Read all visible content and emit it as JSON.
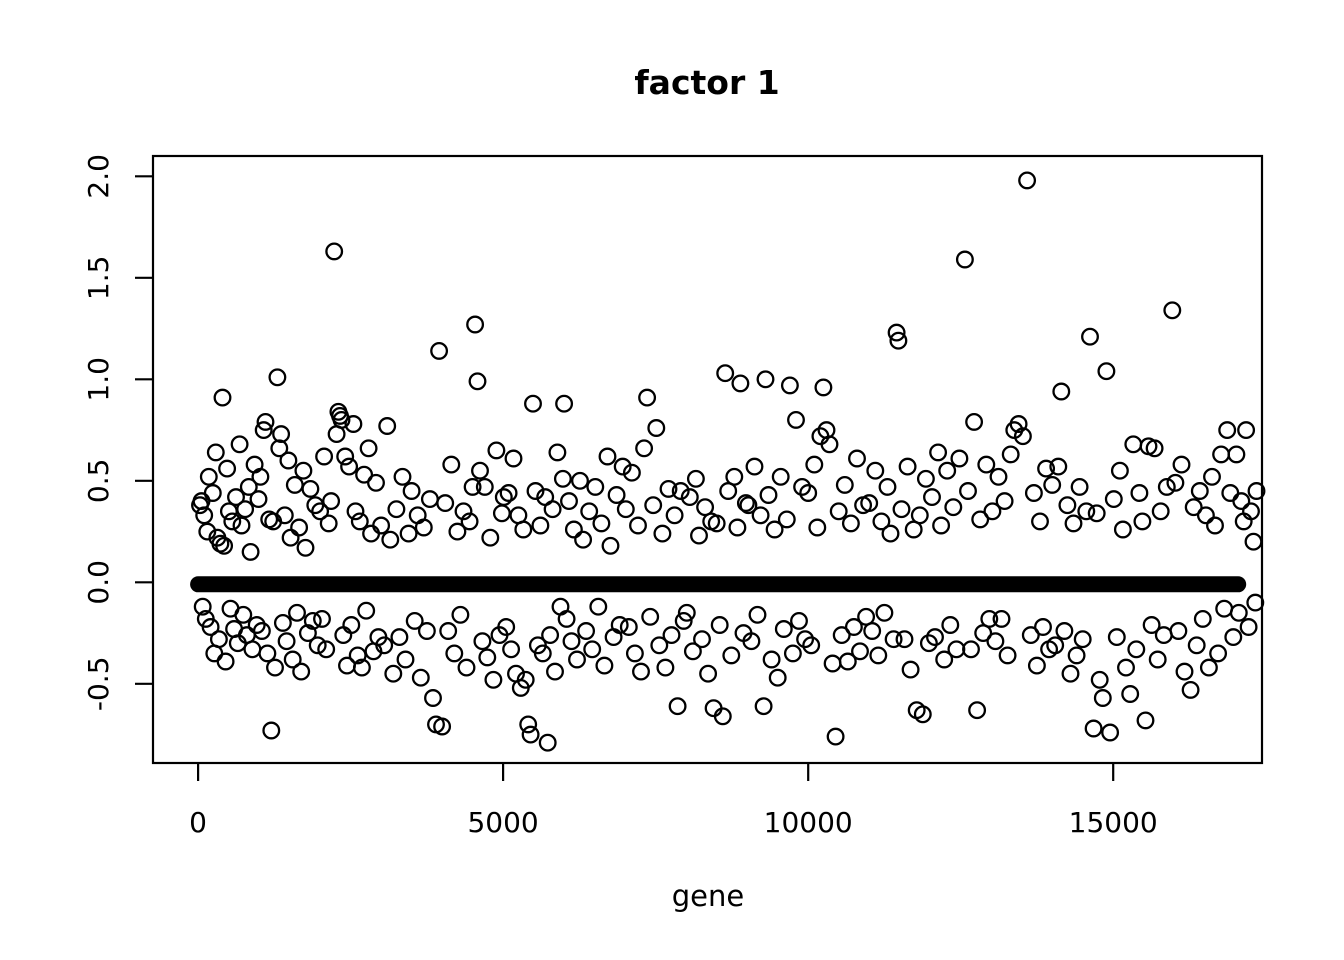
{
  "title": "factor 1",
  "chart_data": {
    "type": "scatter",
    "title": "factor 1",
    "xlabel": "gene",
    "ylabel": "",
    "xlim": [
      -740,
      17440
    ],
    "ylim": [
      -0.89,
      2.1
    ],
    "x_ticks": [
      {
        "v": 0,
        "label": "0"
      },
      {
        "v": 5000,
        "label": "5000"
      },
      {
        "v": 10000,
        "label": "10000"
      },
      {
        "v": 15000,
        "label": "15000"
      }
    ],
    "y_ticks": [
      {
        "v": -0.5,
        "label": "-0.5"
      },
      {
        "v": 0.0,
        "label": "0.0"
      },
      {
        "v": 0.5,
        "label": "0.5"
      },
      {
        "v": 1.0,
        "label": "1.0"
      },
      {
        "v": 1.5,
        "label": "1.5"
      },
      {
        "v": 2.0,
        "label": "2.0"
      }
    ],
    "grid": false,
    "legend": null,
    "marker": "open-circle",
    "colors": {
      "points": "#000000",
      "axis": "#000000",
      "background": "#ffffff"
    },
    "zero_band": {
      "y": 0,
      "x_start": 0,
      "x_end": 17050,
      "description": "dense run of points at y = 0 across nearly all genes, rendered as a thick solid horizontal bar"
    },
    "estimation_note": "individual scatter values read off axes and estimated; notable outliers: (13590,1.98), (2230,1.63), (12570,1.59), (15970,1.34), (4540,1.27), (11450,1.23), (14620,1.21), (3950,1.14), lows near -0.7 to -0.79",
    "points": [
      [
        30,
        0.38
      ],
      [
        55,
        0.4
      ],
      [
        75,
        -0.12
      ],
      [
        100,
        0.33
      ],
      [
        125,
        -0.18
      ],
      [
        150,
        0.25
      ],
      [
        175,
        0.52
      ],
      [
        205,
        -0.22
      ],
      [
        240,
        0.44
      ],
      [
        265,
        -0.35
      ],
      [
        290,
        0.64
      ],
      [
        315,
        0.22
      ],
      [
        340,
        -0.28
      ],
      [
        365,
        0.19
      ],
      [
        400,
        0.91
      ],
      [
        425,
        0.18
      ],
      [
        450,
        -0.39
      ],
      [
        475,
        0.56
      ],
      [
        505,
        0.35
      ],
      [
        530,
        -0.13
      ],
      [
        560,
        0.3
      ],
      [
        590,
        -0.23
      ],
      [
        620,
        0.42
      ],
      [
        650,
        -0.3
      ],
      [
        680,
        0.68
      ],
      [
        710,
        0.28
      ],
      [
        740,
        -0.16
      ],
      [
        770,
        0.36
      ],
      [
        800,
        -0.26
      ],
      [
        830,
        0.47
      ],
      [
        860,
        0.15
      ],
      [
        890,
        -0.33
      ],
      [
        925,
        0.58
      ],
      [
        960,
        -0.21
      ],
      [
        990,
        0.41
      ],
      [
        1020,
        0.52
      ],
      [
        1045,
        -0.24
      ],
      [
        1075,
        0.75
      ],
      [
        1105,
        0.79
      ],
      [
        1135,
        -0.35
      ],
      [
        1165,
        0.31
      ],
      [
        1200,
        -0.73
      ],
      [
        1230,
        0.3
      ],
      [
        1260,
        -0.42
      ],
      [
        1300,
        1.01
      ],
      [
        1330,
        0.66
      ],
      [
        1360,
        0.73
      ],
      [
        1390,
        -0.2
      ],
      [
        1420,
        0.33
      ],
      [
        1450,
        -0.29
      ],
      [
        1480,
        0.6
      ],
      [
        1515,
        0.22
      ],
      [
        1550,
        -0.38
      ],
      [
        1585,
        0.48
      ],
      [
        1620,
        -0.15
      ],
      [
        1655,
        0.27
      ],
      [
        1690,
        -0.44
      ],
      [
        1725,
        0.55
      ],
      [
        1760,
        0.17
      ],
      [
        1800,
        -0.25
      ],
      [
        1840,
        0.46
      ],
      [
        1880,
        -0.19
      ],
      [
        1920,
        0.38
      ],
      [
        1960,
        -0.31
      ],
      [
        2000,
        0.35
      ],
      [
        2030,
        -0.18
      ],
      [
        2065,
        0.62
      ],
      [
        2100,
        -0.33
      ],
      [
        2140,
        0.29
      ],
      [
        2180,
        0.4
      ],
      [
        2230,
        1.63
      ],
      [
        2270,
        0.73
      ],
      [
        2300,
        0.84
      ],
      [
        2325,
        0.82
      ],
      [
        2350,
        0.8
      ],
      [
        2380,
        -0.26
      ],
      [
        2410,
        0.62
      ],
      [
        2440,
        -0.41
      ],
      [
        2475,
        0.57
      ],
      [
        2510,
        -0.21
      ],
      [
        2545,
        0.78
      ],
      [
        2580,
        0.35
      ],
      [
        2615,
        -0.36
      ],
      [
        2650,
        0.3
      ],
      [
        2685,
        -0.42
      ],
      [
        2720,
        0.53
      ],
      [
        2755,
        -0.14
      ],
      [
        2795,
        0.66
      ],
      [
        2835,
        0.24
      ],
      [
        2875,
        -0.34
      ],
      [
        2915,
        0.49
      ],
      [
        2955,
        -0.27
      ],
      [
        3000,
        0.28
      ],
      [
        3050,
        -0.31
      ],
      [
        3100,
        0.77
      ],
      [
        3150,
        0.21
      ],
      [
        3200,
        -0.45
      ],
      [
        3250,
        0.36
      ],
      [
        3300,
        -0.27
      ],
      [
        3350,
        0.52
      ],
      [
        3400,
        -0.38
      ],
      [
        3450,
        0.24
      ],
      [
        3500,
        0.45
      ],
      [
        3550,
        -0.19
      ],
      [
        3600,
        0.33
      ],
      [
        3650,
        -0.47
      ],
      [
        3700,
        0.27
      ],
      [
        3750,
        -0.24
      ],
      [
        3800,
        0.41
      ],
      [
        3850,
        -0.57
      ],
      [
        3900,
        -0.7
      ],
      [
        3950,
        1.14
      ],
      [
        4000,
        -0.71
      ],
      [
        4050,
        0.39
      ],
      [
        4100,
        -0.24
      ],
      [
        4150,
        0.58
      ],
      [
        4200,
        -0.35
      ],
      [
        4250,
        0.25
      ],
      [
        4300,
        -0.16
      ],
      [
        4350,
        0.35
      ],
      [
        4400,
        -0.42
      ],
      [
        4450,
        0.3
      ],
      [
        4500,
        0.47
      ],
      [
        4540,
        1.27
      ],
      [
        4580,
        0.99
      ],
      [
        4620,
        0.55
      ],
      [
        4660,
        -0.29
      ],
      [
        4700,
        0.47
      ],
      [
        4740,
        -0.37
      ],
      [
        4790,
        0.22
      ],
      [
        4840,
        -0.48
      ],
      [
        4890,
        0.65
      ],
      [
        4940,
        -0.26
      ],
      [
        4980,
        0.34
      ],
      [
        5010,
        0.42
      ],
      [
        5050,
        -0.22
      ],
      [
        5090,
        0.44
      ],
      [
        5130,
        -0.33
      ],
      [
        5170,
        0.61
      ],
      [
        5210,
        -0.45
      ],
      [
        5250,
        0.33
      ],
      [
        5290,
        -0.52
      ],
      [
        5330,
        0.26
      ],
      [
        5370,
        -0.48
      ],
      [
        5410,
        -0.7
      ],
      [
        5450,
        -0.75
      ],
      [
        5490,
        0.88
      ],
      [
        5530,
        0.45
      ],
      [
        5570,
        -0.31
      ],
      [
        5610,
        0.28
      ],
      [
        5650,
        -0.35
      ],
      [
        5690,
        0.42
      ],
      [
        5730,
        -0.79
      ],
      [
        5770,
        -0.26
      ],
      [
        5810,
        0.36
      ],
      [
        5850,
        -0.44
      ],
      [
        5890,
        0.64
      ],
      [
        5940,
        -0.12
      ],
      [
        5980,
        0.51
      ],
      [
        6000,
        0.88
      ],
      [
        6040,
        -0.18
      ],
      [
        6080,
        0.4
      ],
      [
        6120,
        -0.29
      ],
      [
        6160,
        0.26
      ],
      [
        6210,
        -0.38
      ],
      [
        6260,
        0.5
      ],
      [
        6310,
        0.21
      ],
      [
        6360,
        -0.24
      ],
      [
        6410,
        0.35
      ],
      [
        6460,
        -0.33
      ],
      [
        6510,
        0.47
      ],
      [
        6560,
        -0.12
      ],
      [
        6610,
        0.29
      ],
      [
        6660,
        -0.41
      ],
      [
        6710,
        0.62
      ],
      [
        6760,
        0.18
      ],
      [
        6810,
        -0.27
      ],
      [
        6860,
        0.43
      ],
      [
        6910,
        -0.21
      ],
      [
        6960,
        0.57
      ],
      [
        7010,
        0.36
      ],
      [
        7060,
        -0.22
      ],
      [
        7110,
        0.54
      ],
      [
        7160,
        -0.35
      ],
      [
        7210,
        0.28
      ],
      [
        7260,
        -0.44
      ],
      [
        7310,
        0.66
      ],
      [
        7360,
        0.91
      ],
      [
        7410,
        -0.17
      ],
      [
        7460,
        0.38
      ],
      [
        7510,
        0.76
      ],
      [
        7560,
        -0.31
      ],
      [
        7610,
        0.24
      ],
      [
        7660,
        -0.42
      ],
      [
        7710,
        0.46
      ],
      [
        7760,
        -0.26
      ],
      [
        7810,
        0.33
      ],
      [
        7860,
        -0.61
      ],
      [
        7910,
        0.45
      ],
      [
        7960,
        -0.19
      ],
      [
        8010,
        -0.15
      ],
      [
        8060,
        0.42
      ],
      [
        8110,
        -0.34
      ],
      [
        8160,
        0.51
      ],
      [
        8210,
        0.23
      ],
      [
        8260,
        -0.28
      ],
      [
        8310,
        0.37
      ],
      [
        8360,
        -0.45
      ],
      [
        8410,
        0.3
      ],
      [
        8450,
        -0.62
      ],
      [
        8500,
        0.29
      ],
      [
        8550,
        -0.21
      ],
      [
        8600,
        -0.66
      ],
      [
        8640,
        1.03
      ],
      [
        8690,
        0.45
      ],
      [
        8740,
        -0.36
      ],
      [
        8790,
        0.52
      ],
      [
        8840,
        0.27
      ],
      [
        8890,
        0.98
      ],
      [
        8940,
        -0.25
      ],
      [
        8980,
        0.39
      ],
      [
        9020,
        0.38
      ],
      [
        9070,
        -0.29
      ],
      [
        9120,
        0.57
      ],
      [
        9170,
        -0.16
      ],
      [
        9220,
        0.33
      ],
      [
        9270,
        -0.61
      ],
      [
        9300,
        1.0
      ],
      [
        9350,
        0.43
      ],
      [
        9400,
        -0.38
      ],
      [
        9450,
        0.26
      ],
      [
        9500,
        -0.47
      ],
      [
        9550,
        0.52
      ],
      [
        9600,
        -0.23
      ],
      [
        9650,
        0.31
      ],
      [
        9700,
        0.97
      ],
      [
        9750,
        -0.35
      ],
      [
        9800,
        0.8
      ],
      [
        9850,
        -0.19
      ],
      [
        9900,
        0.47
      ],
      [
        9950,
        -0.28
      ],
      [
        10000,
        0.44
      ],
      [
        10050,
        -0.31
      ],
      [
        10100,
        0.58
      ],
      [
        10150,
        0.27
      ],
      [
        10200,
        0.72
      ],
      [
        10250,
        0.96
      ],
      [
        10300,
        0.75
      ],
      [
        10350,
        0.68
      ],
      [
        10400,
        -0.4
      ],
      [
        10450,
        -0.76
      ],
      [
        10500,
        0.35
      ],
      [
        10550,
        -0.26
      ],
      [
        10600,
        0.48
      ],
      [
        10650,
        -0.39
      ],
      [
        10700,
        0.29
      ],
      [
        10750,
        -0.22
      ],
      [
        10800,
        0.61
      ],
      [
        10850,
        -0.34
      ],
      [
        10900,
        0.38
      ],
      [
        10950,
        -0.17
      ],
      [
        11000,
        0.39
      ],
      [
        11050,
        -0.24
      ],
      [
        11100,
        0.55
      ],
      [
        11150,
        -0.36
      ],
      [
        11200,
        0.3
      ],
      [
        11250,
        -0.15
      ],
      [
        11300,
        0.47
      ],
      [
        11350,
        0.24
      ],
      [
        11400,
        -0.28
      ],
      [
        11450,
        1.23
      ],
      [
        11480,
        1.19
      ],
      [
        11530,
        0.36
      ],
      [
        11580,
        -0.28
      ],
      [
        11630,
        0.57
      ],
      [
        11680,
        -0.43
      ],
      [
        11730,
        0.26
      ],
      [
        11780,
        -0.63
      ],
      [
        11830,
        0.33
      ],
      [
        11880,
        -0.65
      ],
      [
        11930,
        0.51
      ],
      [
        11980,
        -0.3
      ],
      [
        12030,
        0.42
      ],
      [
        12080,
        -0.27
      ],
      [
        12130,
        0.64
      ],
      [
        12180,
        0.28
      ],
      [
        12230,
        -0.38
      ],
      [
        12280,
        0.55
      ],
      [
        12330,
        -0.21
      ],
      [
        12380,
        0.37
      ],
      [
        12430,
        -0.33
      ],
      [
        12480,
        0.61
      ],
      [
        12570,
        1.59
      ],
      [
        12620,
        0.45
      ],
      [
        12670,
        -0.33
      ],
      [
        12720,
        0.79
      ],
      [
        12770,
        -0.63
      ],
      [
        12820,
        0.31
      ],
      [
        12870,
        -0.25
      ],
      [
        12920,
        0.58
      ],
      [
        12970,
        -0.18
      ],
      [
        13020,
        0.35
      ],
      [
        13070,
        -0.29
      ],
      [
        13120,
        0.52
      ],
      [
        13170,
        -0.18
      ],
      [
        13220,
        0.4
      ],
      [
        13270,
        -0.36
      ],
      [
        13320,
        0.63
      ],
      [
        13380,
        0.75
      ],
      [
        13450,
        0.78
      ],
      [
        13520,
        0.72
      ],
      [
        13590,
        1.98
      ],
      [
        13650,
        -0.26
      ],
      [
        13700,
        0.44
      ],
      [
        13750,
        -0.41
      ],
      [
        13800,
        0.3
      ],
      [
        13850,
        -0.22
      ],
      [
        13900,
        0.56
      ],
      [
        13950,
        -0.33
      ],
      [
        14000,
        0.48
      ],
      [
        14050,
        -0.31
      ],
      [
        14100,
        0.57
      ],
      [
        14150,
        0.94
      ],
      [
        14200,
        -0.24
      ],
      [
        14250,
        0.38
      ],
      [
        14300,
        -0.45
      ],
      [
        14350,
        0.29
      ],
      [
        14400,
        -0.36
      ],
      [
        14450,
        0.47
      ],
      [
        14500,
        -0.28
      ],
      [
        14560,
        0.35
      ],
      [
        14620,
        1.21
      ],
      [
        14680,
        -0.72
      ],
      [
        14730,
        0.34
      ],
      [
        14780,
        -0.48
      ],
      [
        14830,
        -0.57
      ],
      [
        14890,
        1.04
      ],
      [
        14950,
        -0.74
      ],
      [
        15010,
        0.41
      ],
      [
        15060,
        -0.27
      ],
      [
        15110,
        0.55
      ],
      [
        15160,
        0.26
      ],
      [
        15210,
        -0.42
      ],
      [
        15280,
        -0.55
      ],
      [
        15330,
        0.68
      ],
      [
        15380,
        -0.33
      ],
      [
        15430,
        0.44
      ],
      [
        15480,
        0.3
      ],
      [
        15530,
        -0.68
      ],
      [
        15580,
        0.67
      ],
      [
        15630,
        -0.21
      ],
      [
        15680,
        0.66
      ],
      [
        15730,
        -0.38
      ],
      [
        15780,
        0.35
      ],
      [
        15830,
        -0.26
      ],
      [
        15880,
        0.47
      ],
      [
        15970,
        1.34
      ],
      [
        16020,
        0.49
      ],
      [
        16070,
        -0.24
      ],
      [
        16120,
        0.58
      ],
      [
        16170,
        -0.44
      ],
      [
        16270,
        -0.53
      ],
      [
        16320,
        0.37
      ],
      [
        16370,
        -0.31
      ],
      [
        16420,
        0.45
      ],
      [
        16470,
        -0.18
      ],
      [
        16520,
        0.33
      ],
      [
        16570,
        -0.42
      ],
      [
        16620,
        0.52
      ],
      [
        16670,
        0.28
      ],
      [
        16720,
        -0.35
      ],
      [
        16770,
        0.63
      ],
      [
        16820,
        -0.13
      ],
      [
        16870,
        0.75
      ],
      [
        16920,
        0.44
      ],
      [
        16970,
        -0.27
      ],
      [
        17020,
        0.63
      ],
      [
        17060,
        -0.15
      ],
      [
        17100,
        0.4
      ],
      [
        17140,
        0.3
      ],
      [
        17180,
        0.75
      ],
      [
        17220,
        -0.22
      ],
      [
        17260,
        0.35
      ],
      [
        17300,
        0.2
      ],
      [
        17330,
        -0.1
      ],
      [
        17350,
        0.45
      ]
    ]
  }
}
